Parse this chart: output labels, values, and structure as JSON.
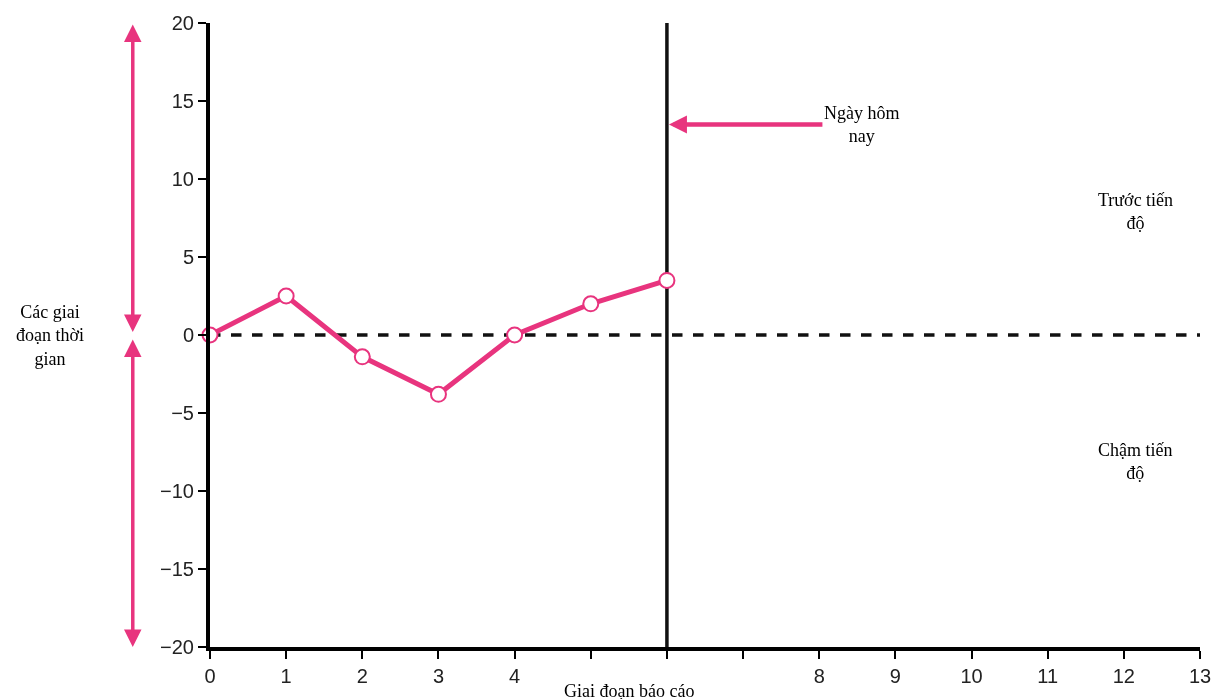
{
  "chart_data": {
    "type": "line",
    "xlabel": "Giai đoạn báo cáo",
    "ylabel": "Các giai đoạn thời gian",
    "x": [
      0,
      1,
      2,
      3,
      4,
      5,
      6
    ],
    "series": [
      {
        "color": "#e8347e",
        "values": [
          0,
          2.5,
          -1.4,
          -3.8,
          0,
          2,
          3.5
        ]
      }
    ],
    "marker": "circle",
    "line_style": "solid",
    "grid": false,
    "legend": false,
    "xlim": [
      0,
      13
    ],
    "ylim": [
      -20,
      20
    ],
    "xticks": [
      0,
      1,
      2,
      3,
      4,
      {
        "value": 5,
        "label": null
      },
      {
        "value": 6,
        "label": null
      },
      {
        "value": 7,
        "label": null
      },
      8,
      9,
      10,
      11,
      12,
      13
    ],
    "yticks": [
      -20,
      -15,
      -10,
      -5,
      0,
      5,
      10,
      15,
      20
    ],
    "ref_lines": [
      {
        "axis": "y",
        "value": 0,
        "color": "#111111",
        "line_style": "dashed"
      },
      {
        "axis": "x",
        "value": 6,
        "color": "#111111",
        "line_style": "solid"
      }
    ],
    "annotations": [
      {
        "text": "Ngày hôm nay",
        "x": 6,
        "y": 13.5
      },
      "Trước tiến độ",
      "Chậm tiến độ"
    ]
  }
}
